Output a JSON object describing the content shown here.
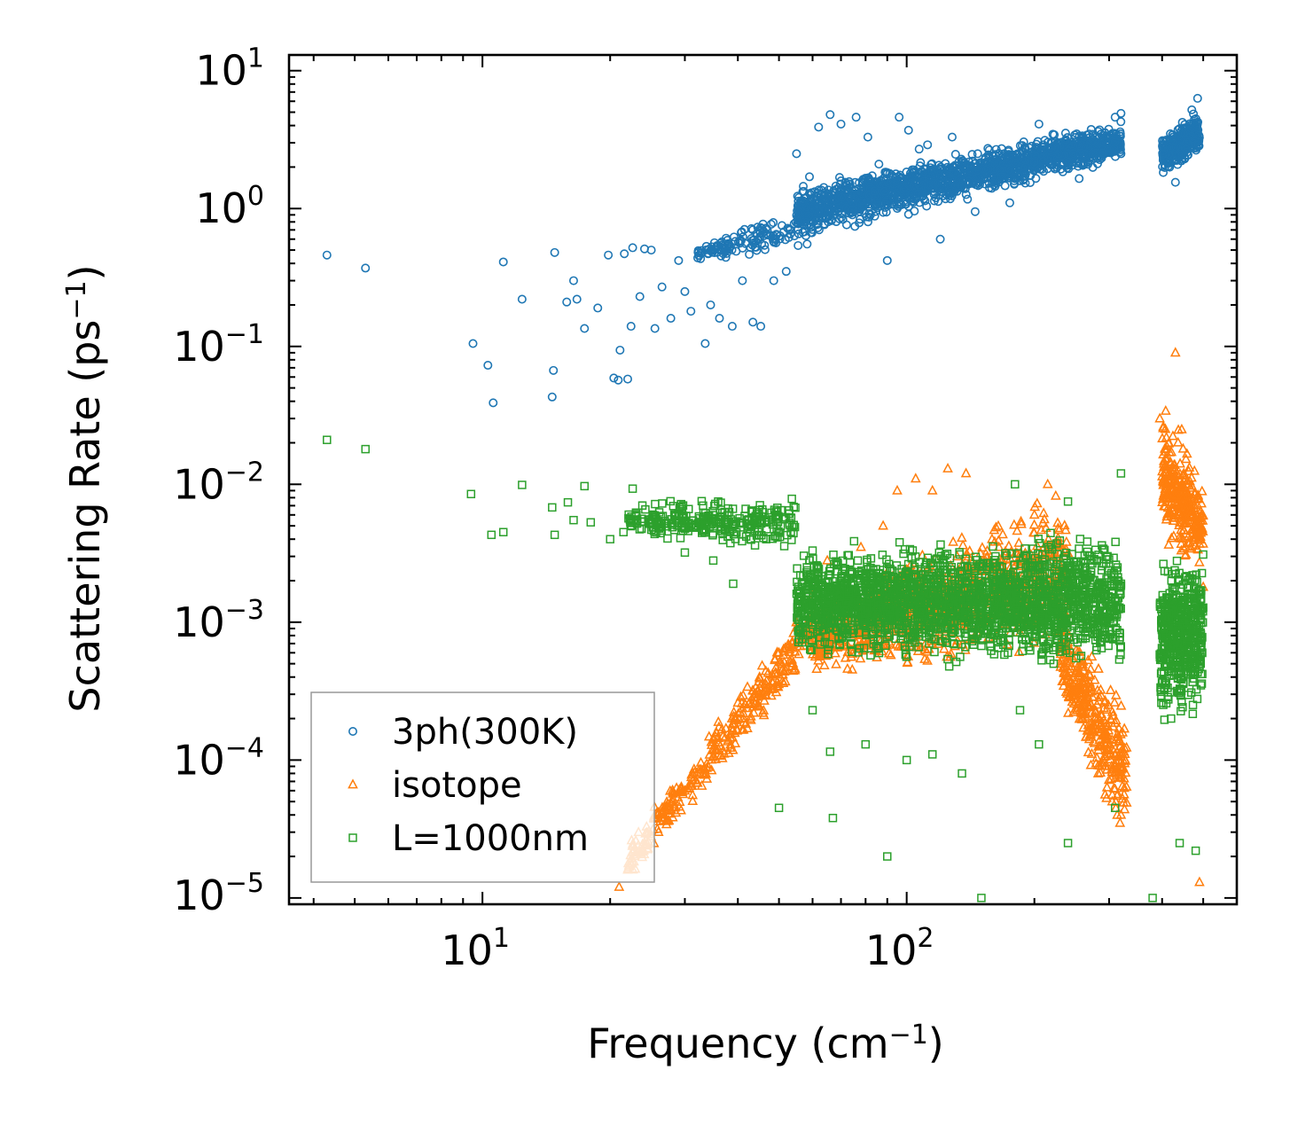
{
  "chart_data": {
    "type": "scatter",
    "xscale": "log",
    "yscale": "log",
    "xlim": [
      3.5,
      600
    ],
    "ylim": [
      9e-06,
      13
    ],
    "xlabel": {
      "text": "Frequency (cm",
      "sup": "−1",
      "close": ")"
    },
    "ylabel": {
      "text": "Scattering Rate (ps",
      "sup": "−1",
      "close": ")"
    },
    "x_ticks": [
      {
        "value": 10,
        "base": "10",
        "exp": "1"
      },
      {
        "value": 100,
        "base": "10",
        "exp": "2"
      }
    ],
    "y_ticks": [
      {
        "value": 10,
        "base": "10",
        "exp": "1"
      },
      {
        "value": 1,
        "base": "10",
        "exp": "0"
      },
      {
        "value": 0.1,
        "base": "10",
        "exp": "−1"
      },
      {
        "value": 0.01,
        "base": "10",
        "exp": "−2"
      },
      {
        "value": 0.001,
        "base": "10",
        "exp": "−3"
      },
      {
        "value": 0.0001,
        "base": "10",
        "exp": "−4"
      },
      {
        "value": 1e-05,
        "base": "10",
        "exp": "−5"
      }
    ],
    "legend": {
      "position": "lower-left"
    },
    "series": [
      {
        "name": "3ph(300K)",
        "marker": "circle",
        "color": "#1f77b4",
        "points": [
          [
            4.3,
            0.46
          ],
          [
            5.3,
            0.37
          ],
          [
            9.5,
            0.105
          ],
          [
            10.3,
            0.073
          ],
          [
            10.6,
            0.039
          ],
          [
            11.2,
            0.41
          ],
          [
            12.4,
            0.22
          ],
          [
            14.6,
            0.043
          ],
          [
            14.7,
            0.067
          ],
          [
            14.8,
            0.48
          ],
          [
            15.8,
            0.21
          ],
          [
            16.4,
            0.3
          ],
          [
            16.7,
            0.22
          ],
          [
            17.4,
            0.135
          ],
          [
            18.7,
            0.19
          ],
          [
            19.8,
            0.46
          ],
          [
            20.4,
            0.059
          ],
          [
            20.9,
            0.057
          ],
          [
            21.1,
            0.094
          ],
          [
            21.6,
            0.47
          ],
          [
            22,
            0.058
          ],
          [
            22.4,
            0.14
          ],
          [
            22.6,
            0.52
          ],
          [
            23.5,
            0.23
          ],
          [
            24.1,
            0.51
          ],
          [
            25,
            0.5
          ],
          [
            25.5,
            0.135
          ],
          [
            26.5,
            0.27
          ],
          [
            27.8,
            0.16
          ],
          [
            29,
            0.42
          ],
          [
            30,
            0.25
          ],
          [
            31,
            0.18
          ],
          [
            33.5,
            0.105
          ],
          [
            34.5,
            0.2
          ],
          [
            36.2,
            0.16
          ],
          [
            38.8,
            0.14
          ],
          [
            41,
            0.3
          ],
          [
            43.4,
            0.15
          ],
          [
            45.3,
            0.14
          ],
          [
            48.6,
            0.3
          ],
          [
            52,
            0.35
          ],
          [
            55,
            2.5
          ],
          [
            59,
            1.7
          ],
          [
            62,
            3.9
          ],
          [
            66,
            4.8
          ],
          [
            70,
            4.1
          ],
          [
            76,
            4.6
          ],
          [
            81,
            3.3
          ],
          [
            86,
            2.1
          ],
          [
            90,
            0.42
          ],
          [
            96,
            4.6
          ],
          [
            101,
            3.7
          ],
          [
            107,
            2.7
          ],
          [
            112,
            2.9
          ],
          [
            120,
            0.6
          ],
          [
            128,
            3.3
          ],
          [
            136,
            2.2
          ],
          [
            145,
            0.95
          ],
          [
            160,
            2.4
          ],
          [
            175,
            1.1
          ],
          [
            190,
            2.7
          ],
          [
            205,
            4.1
          ],
          [
            220,
            3
          ],
          [
            240,
            2.1
          ],
          [
            255,
            1.65
          ],
          [
            270,
            2.6
          ],
          [
            290,
            3.2
          ],
          [
            310,
            4.6
          ],
          [
            320,
            4.9
          ],
          [
            410,
            2.3
          ],
          [
            430,
            1.55
          ],
          [
            450,
            3.3
          ],
          [
            470,
            5.2
          ],
          [
            485,
            6.3
          ]
        ],
        "clouds": [
          {
            "f1": 55,
            "f2": 320,
            "lo1": 0.55,
            "hi1": 1.6,
            "lo2": 2.1,
            "hi2": 4.5,
            "n": 1600
          },
          {
            "f1": 32,
            "f2": 60,
            "lo1": 0.42,
            "hi1": 0.52,
            "lo2": 0.45,
            "hi2": 1.4,
            "n": 150
          },
          {
            "f1": 400,
            "f2": 490,
            "lo1": 1.7,
            "hi1": 3.4,
            "lo2": 2.3,
            "hi2": 5.5,
            "n": 300
          }
        ]
      },
      {
        "name": "isotope",
        "marker": "triangle",
        "color": "#ff7f0e",
        "points": [
          [
            21,
            1.2e-05
          ],
          [
            22,
            1.6e-05
          ],
          [
            24,
            2.2e-05
          ],
          [
            26,
            3e-05
          ],
          [
            30,
            6e-05
          ],
          [
            35,
            0.00014
          ],
          [
            40,
            0.00026
          ],
          [
            45,
            0.0004
          ],
          [
            50,
            0.0006
          ],
          [
            55,
            0.001
          ],
          [
            60,
            0.0016
          ],
          [
            65,
            0.0028
          ],
          [
            78,
            0.0035
          ],
          [
            88,
            0.005
          ],
          [
            95,
            0.009
          ],
          [
            105,
            0.011
          ],
          [
            115,
            0.009
          ],
          [
            125,
            0.013
          ],
          [
            138,
            0.012
          ],
          [
            165,
            0.0035
          ],
          [
            200,
            0.006
          ],
          [
            215,
            0.01
          ],
          [
            235,
            0.0008
          ],
          [
            260,
            0.0002
          ],
          [
            285,
            0.00014
          ],
          [
            305,
            5e-05
          ],
          [
            320,
            4e-05
          ],
          [
            395,
            0.03
          ],
          [
            415,
            0.02
          ],
          [
            430,
            0.09
          ],
          [
            445,
            0.025
          ],
          [
            460,
            0.01
          ],
          [
            475,
            0.007
          ],
          [
            490,
            1.3e-05
          ],
          [
            500,
            0.0018
          ]
        ],
        "clouds": [
          {
            "f1": 22,
            "f2": 60,
            "lo1": 1.2e-05,
            "hi1": 2.8e-05,
            "lo2": 0.0005,
            "hi2": 0.0016,
            "n": 350
          },
          {
            "f1": 60,
            "f2": 240,
            "lo1": 0.0004,
            "hi1": 0.0015,
            "lo2": 0.0005,
            "hi2": 0.012,
            "n": 1000
          },
          {
            "f1": 230,
            "f2": 330,
            "lo1": 0.0002,
            "hi1": 0.0015,
            "lo2": 2e-05,
            "hi2": 0.0003,
            "n": 350
          },
          {
            "f1": 400,
            "f2": 500,
            "lo1": 0.003,
            "hi1": 0.05,
            "lo2": 0.002,
            "hi2": 0.012,
            "n": 300
          }
        ]
      },
      {
        "name": "L=1000nm",
        "marker": "square",
        "color": "#2ca02c",
        "points": [
          [
            4.3,
            0.021
          ],
          [
            5.3,
            0.018
          ],
          [
            9.4,
            0.0085
          ],
          [
            10.5,
            0.0043
          ],
          [
            11.2,
            0.0045
          ],
          [
            12.4,
            0.0099
          ],
          [
            14.6,
            0.0068
          ],
          [
            14.8,
            0.0043
          ],
          [
            15.9,
            0.0074
          ],
          [
            16.4,
            0.0055
          ],
          [
            17.4,
            0.0097
          ],
          [
            18,
            0.0053
          ],
          [
            20,
            0.004
          ],
          [
            21.5,
            0.0045
          ],
          [
            22.6,
            0.0093
          ],
          [
            30,
            0.0032
          ],
          [
            35,
            0.0028
          ],
          [
            39,
            0.0019
          ],
          [
            50,
            4.5e-05
          ],
          [
            60,
            0.00023
          ],
          [
            66,
            0.000115
          ],
          [
            67,
            3.8e-05
          ],
          [
            80,
            0.00013
          ],
          [
            90,
            2e-05
          ],
          [
            100,
            0.0001
          ],
          [
            115,
            0.00011
          ],
          [
            135,
            8e-05
          ],
          [
            150,
            1e-05
          ],
          [
            185,
            0.00023
          ],
          [
            205,
            0.00013
          ],
          [
            240,
            2.5e-05
          ],
          [
            310,
            4.5e-05
          ],
          [
            380,
            1e-05
          ],
          [
            420,
            0.0002
          ],
          [
            440,
            2.5e-05
          ],
          [
            480,
            2.2e-05
          ],
          [
            320,
            0.012
          ],
          [
            240,
            0.0075
          ],
          [
            180,
            0.01
          ]
        ],
        "clouds": [
          {
            "f1": 22,
            "f2": 55,
            "lo1": 0.004,
            "hi1": 0.0075,
            "lo2": 0.003,
            "hi2": 0.009,
            "n": 300
          },
          {
            "f1": 55,
            "f2": 320,
            "lo1": 0.0005,
            "hi1": 0.004,
            "lo2": 0.0004,
            "hi2": 0.005,
            "n": 2200
          },
          {
            "f1": 395,
            "f2": 500,
            "lo1": 0.00015,
            "hi1": 0.004,
            "lo2": 0.0002,
            "hi2": 0.004,
            "n": 500
          }
        ]
      }
    ]
  }
}
